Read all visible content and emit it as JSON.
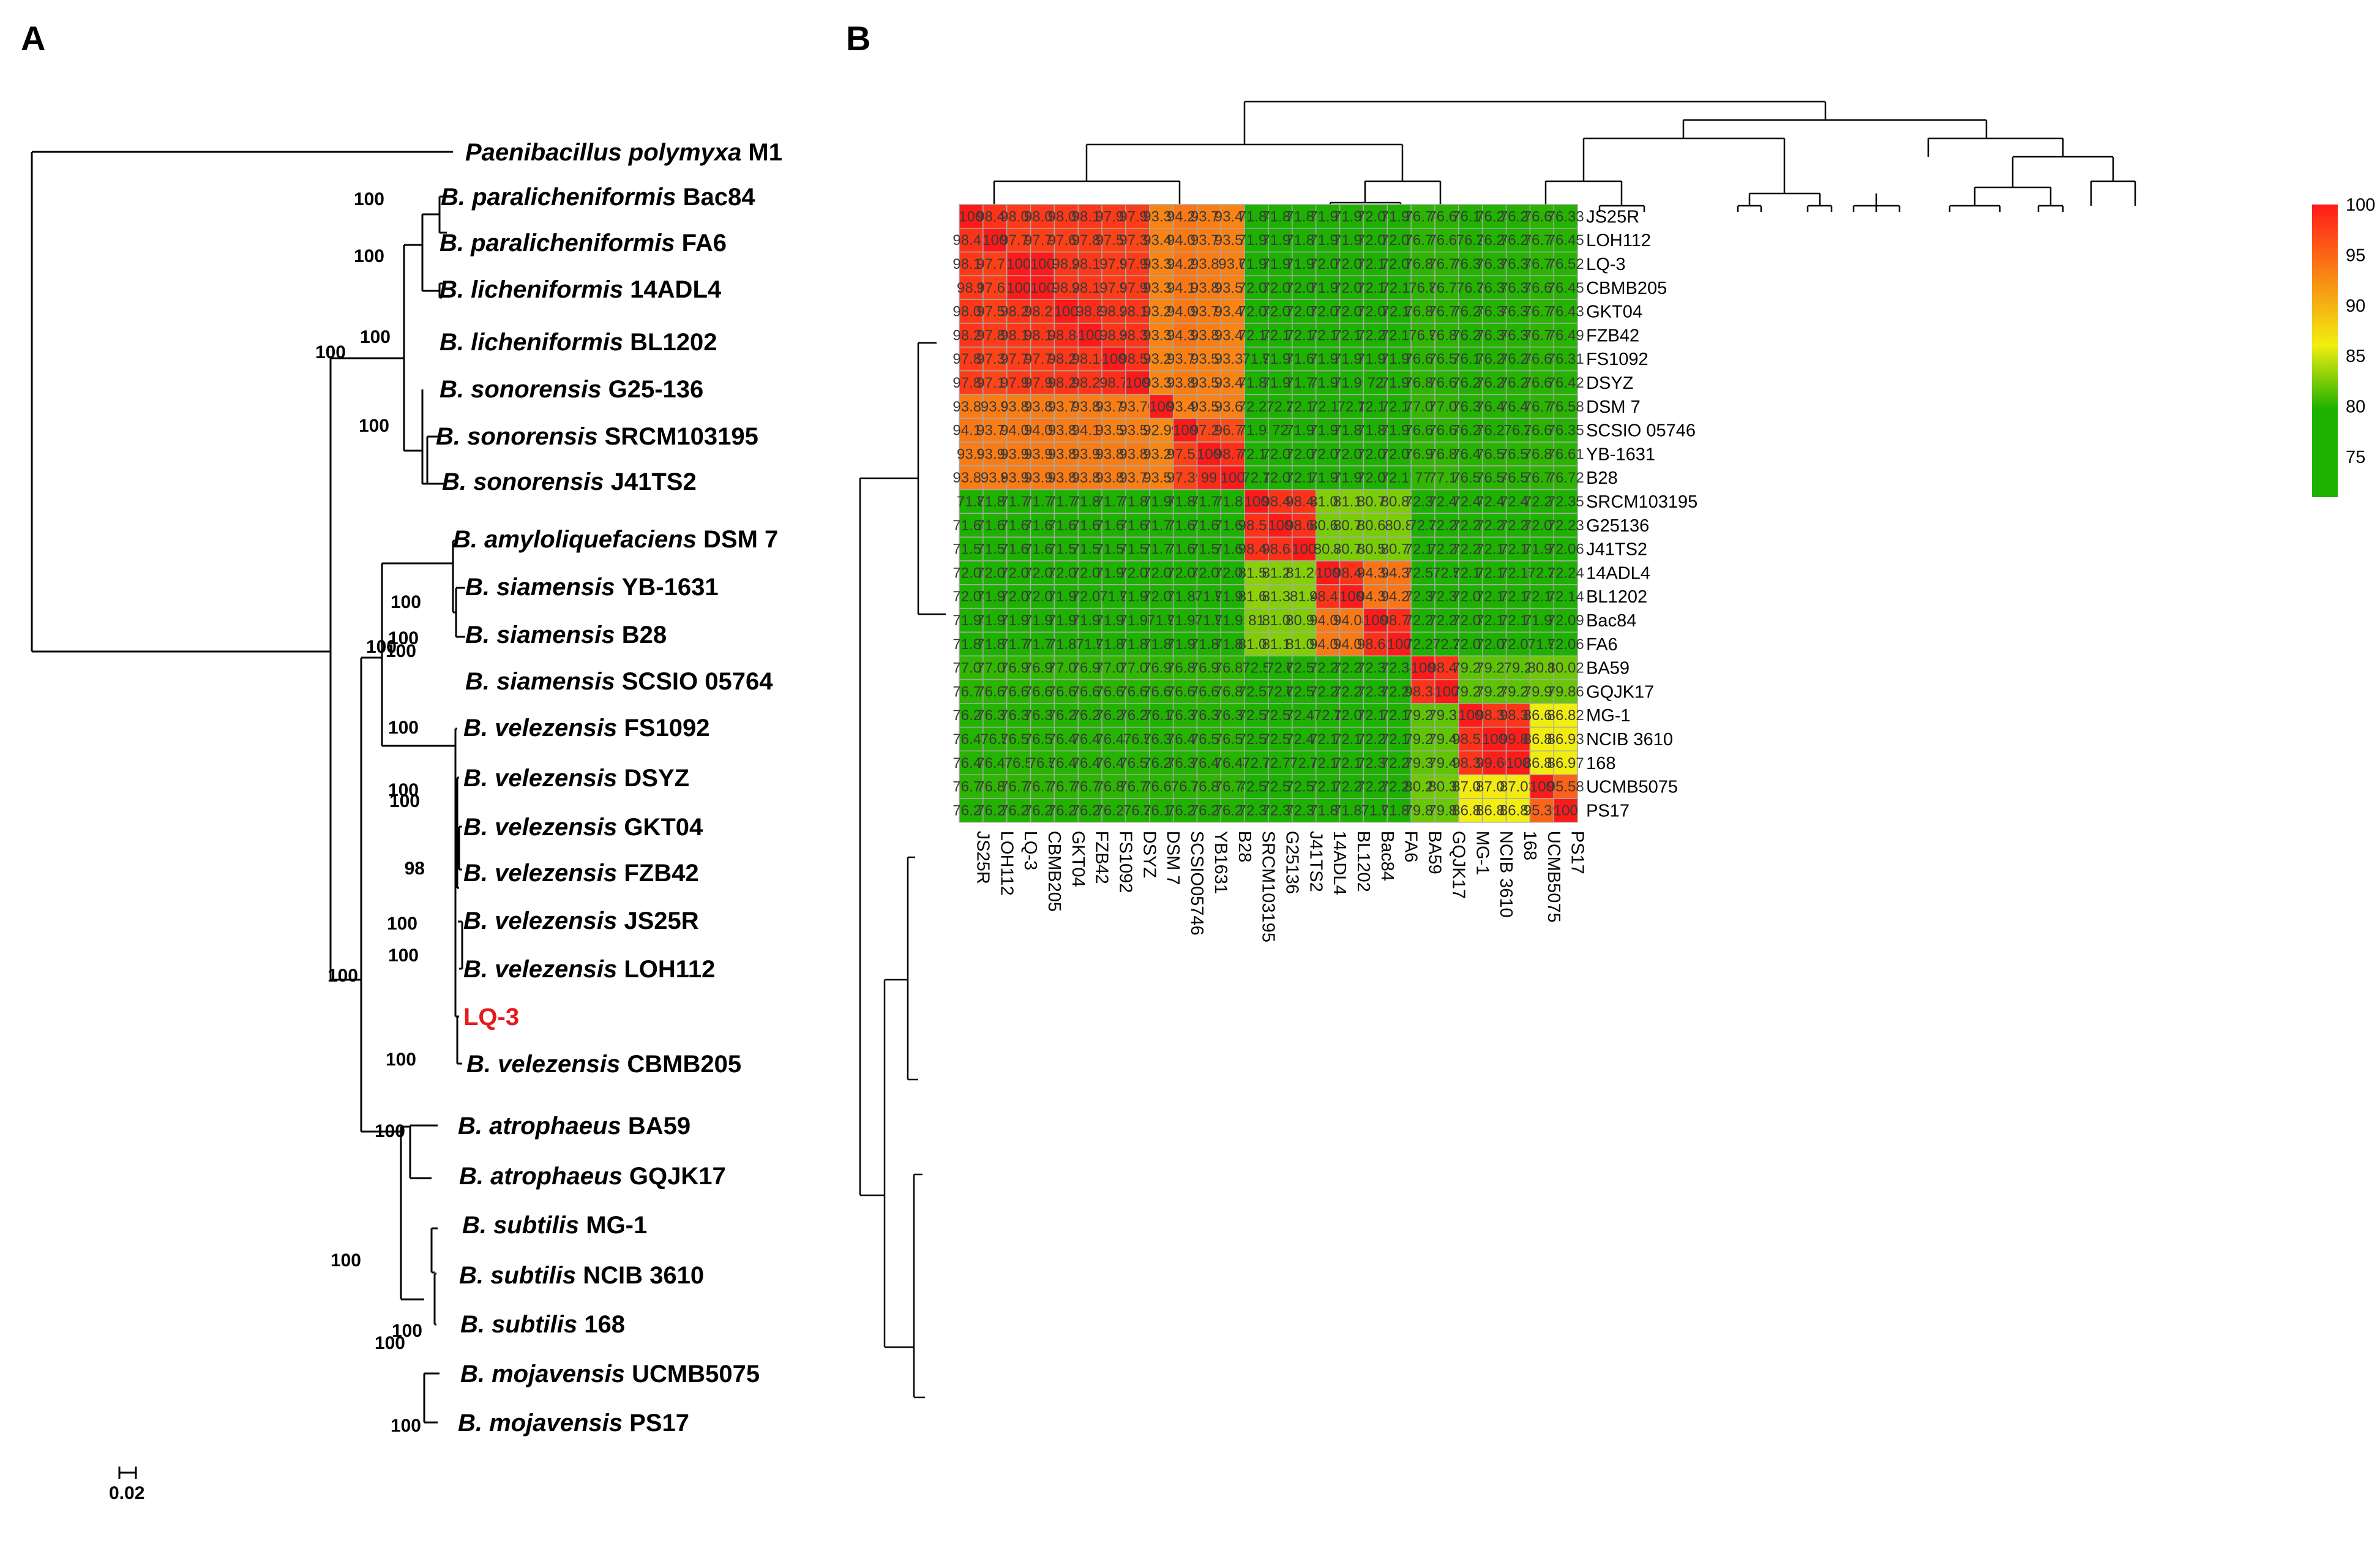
{
  "panels": {
    "a": "A",
    "b": "B"
  },
  "tree": {
    "outgroup": {
      "genus": "Paenibacillus polymyxa",
      "strain": "M1"
    },
    "taxa": [
      {
        "genus": "B. paralicheniformis",
        "strain": "Bac84"
      },
      {
        "genus": "B. paralicheniformis",
        "strain": "FA6"
      },
      {
        "genus": "B. licheniformis",
        "strain": "14ADL4"
      },
      {
        "genus": "B. licheniformis",
        "strain": "BL1202"
      },
      {
        "genus": "B. sonorensis",
        "strain": "G25-136"
      },
      {
        "genus": "B. sonorensis",
        "strain": "SRCM103195"
      },
      {
        "genus": "B. sonorensis",
        "strain": "J41TS2"
      },
      {
        "genus": "B. amyloliquefaciens",
        "strain": "DSM 7"
      },
      {
        "genus": "B. siamensis",
        "strain": "YB-1631"
      },
      {
        "genus": "B. siamensis",
        "strain": "B28"
      },
      {
        "genus": "B. siamensis",
        "strain": "SCSIO 05764"
      },
      {
        "genus": "B. velezensis",
        "strain": "FS1092"
      },
      {
        "genus": "B. velezensis",
        "strain": "DSYZ"
      },
      {
        "genus": "B. velezensis",
        "strain": "GKT04"
      },
      {
        "genus": "B. velezensis",
        "strain": "FZB42"
      },
      {
        "genus": "B. velezensis",
        "strain": "JS25R"
      },
      {
        "genus": "B. velezensis",
        "strain": "LOH112"
      },
      {
        "genus": "",
        "strain": "LQ-3",
        "highlight": "#e8191c"
      },
      {
        "genus": "B. velezensis",
        "strain": "CBMB205"
      },
      {
        "genus": "B. atrophaeus",
        "strain": "BA59"
      },
      {
        "genus": "B. atrophaeus",
        "strain": "GQJK17"
      },
      {
        "genus": "B. subtilis",
        "strain": "MG-1"
      },
      {
        "genus": "B. subtilis",
        "strain": "NCIB 3610"
      },
      {
        "genus": "B. subtilis",
        "strain": "168"
      },
      {
        "genus": "B. mojavensis",
        "strain": "UCMB5075"
      },
      {
        "genus": "B. mojavensis",
        "strain": "PS17"
      }
    ],
    "bootstrap": [
      "100",
      "100",
      "100",
      "100",
      "100",
      "100",
      "100",
      "100",
      "100",
      "100",
      "100",
      "100",
      "98",
      "100",
      "100",
      "100",
      "100",
      "100",
      "100",
      "100",
      "100",
      "100"
    ],
    "scale_label": "0.02"
  },
  "heatmap": {
    "row_labels": [
      "JS25R",
      "LOH112",
      "LQ-3",
      "CBMB205",
      "GKT04",
      "FZB42",
      "FS1092",
      "DSYZ",
      "DSM 7",
      "SCSIO 05746",
      "YB-1631",
      "B28",
      "SRCM103195",
      "G25136",
      "J41TS2",
      "14ADL4",
      "BL1202",
      "Bac84",
      "FA6",
      "BA59",
      "GQJK17",
      "MG-1",
      "NCIB 3610",
      "168",
      "UCMB5075",
      "PS17"
    ],
    "col_labels": [
      "JS25R",
      "LOH112",
      "LQ-3",
      "CBMB205",
      "GKT04",
      "FZB42",
      "FS1092",
      "DSYZ",
      "DSM 7",
      "SCSIO05746",
      "YB1631",
      "B28",
      "SRCM103195",
      "G25136",
      "J41TS2",
      "14ADL4",
      "BL1202",
      "Bac84",
      "FA6",
      "BA59",
      "GQJK17",
      "MG-1",
      "NCIB 3610",
      "168",
      "UCMB5075",
      "PS17"
    ],
    "values": [
      [
        "100",
        "98.42",
        "98.04",
        "98.04",
        "98.08",
        "98.18",
        "97.98",
        "97.91",
        "93.39",
        "94.24",
        "93.71",
        "93.46",
        "71.84",
        "71.86",
        "71.83",
        "71.92",
        "71.93",
        "72.04",
        "71.92",
        "76.74",
        "76.65",
        "76.14",
        "76.23",
        "76.23",
        "76.63",
        "76.33"
      ],
      [
        "98.43",
        "100",
        "97.72",
        "97.72",
        "97.62",
        "97.81",
        "97.51",
        "97.34",
        "93.45",
        "94.05",
        "93.77",
        "93.55",
        "71.98",
        "71.99",
        "71.87",
        "71.93",
        "71.94",
        "72.08",
        "72.01",
        "76.76",
        "76.69",
        "76.2",
        "76.26",
        "76.26",
        "76.76",
        "76.45"
      ],
      [
        "98.14",
        "97.71",
        "100",
        "100",
        "98.2",
        "98.15",
        "97.9",
        "97.94",
        "93.32",
        "94.21",
        "93.86",
        "93.6",
        "71.98",
        "71.97",
        "71.93",
        "72.03",
        "72.04",
        "72.13",
        "72.07",
        "76.82",
        "76.79",
        "76.33",
        "76.39",
        "76.38",
        "76.73",
        "76.52"
      ],
      [
        "98.1",
        "97.62",
        "100",
        "100",
        "98.2",
        "98.12",
        "97.9",
        "97.95",
        "93.31",
        "94.16",
        "93.86",
        "93.57",
        "72.08",
        "72.03",
        "72.05",
        "71.99",
        "72.01",
        "72.15",
        "72.11",
        "76.8",
        "76.75",
        "76.3",
        "76.38",
        "76.38",
        "76.69",
        "76.45"
      ],
      [
        "98.08",
        "97.55",
        "98.23",
        "98.22",
        "100",
        "98.8",
        "98.2",
        "98.18",
        "93.29",
        "94.04",
        "93.76",
        "93.49",
        "72.08",
        "72.09",
        "72.08",
        "72.06",
        "72.05",
        "72.08",
        "72.11",
        "76.89",
        "76.71",
        "76.24",
        "76.34",
        "76.33",
        "76.75",
        "76.43"
      ],
      [
        "98.26",
        "97.82",
        "98.18",
        "98.18",
        "98.84",
        "100",
        "98.3",
        "98.39",
        "93.37",
        "94.34",
        "93.82",
        "93.46",
        "72.18",
        "72.19",
        "72.18",
        "72.12",
        "72.13",
        "72.23",
        "72.19",
        "76.9",
        "76.81",
        "76.26",
        "76.36",
        "76.36",
        "76.76",
        "76.49"
      ],
      [
        "97.83",
        "97.35",
        "97.76",
        "97.76",
        "98.21",
        "98.14",
        "100",
        "98.58",
        "93.23",
        "93.73",
        "93.55",
        "93.33",
        "71.9",
        "71.94",
        "71.69",
        "71.95",
        "71.96",
        "71.97",
        "71.95",
        "76.67",
        "76.58",
        "76.14",
        "76.26",
        "76.26",
        "76.68",
        "76.31"
      ],
      [
        "97.88",
        "97.15",
        "97.93",
        "97.93",
        "98.24",
        "98.29",
        "98.7",
        "100",
        "93.33",
        "93.88",
        "93.58",
        "93.44",
        "71.88",
        "71.91",
        "71.78",
        "71.96",
        "71.99",
        "72",
        "71.95",
        "76.81",
        "76.61",
        "76.21",
        "76.29",
        "76.29",
        "76.61",
        "76.42"
      ],
      [
        "93.89",
        "93.9",
        "93.83",
        "93.83",
        "93.79",
        "93.84",
        "93.78",
        "93.76",
        "100",
        "93.49",
        "93.56",
        "93.68",
        "72.22",
        "72.2",
        "72.15",
        "72.11",
        "72.1",
        "72.15",
        "72.14",
        "77.05",
        "77.03",
        "76.39",
        "76.43",
        "76.43",
        "76.71",
        "76.58"
      ],
      [
        "94.15",
        "93.78",
        "94.06",
        "94.06",
        "93.87",
        "94.15",
        "93.55",
        "93.56",
        "92.99",
        "100",
        "97.21",
        "96.75",
        "71.93",
        "72",
        "71.92",
        "71.96",
        "71.88",
        "71.84",
        "71.91",
        "76.61",
        "76.64",
        "76.23",
        "76.21",
        "76.2",
        "76.66",
        "76.35"
      ],
      [
        "93.9",
        "93.94",
        "93.96",
        "93.96",
        "93.88",
        "93.91",
        "93.88",
        "93.89",
        "93.29",
        "97.52",
        "100",
        "98.76",
        "72.13",
        "72.05",
        "72.09",
        "72.06",
        "72.03",
        "72.07",
        "72.02",
        "76.97",
        "76.85",
        "76.47",
        "76.55",
        "76.55",
        "76.88",
        "76.61"
      ],
      [
        "93.89",
        "93.8",
        "93.94",
        "93.94",
        "93.88",
        "93.83",
        "93.82",
        "93.77",
        "93.55",
        "97.39",
        "99",
        "100",
        "72.1",
        "72.08",
        "72.15",
        "71.99",
        "71.99",
        "72.08",
        "72.15",
        "77",
        "77.16",
        "76.51",
        "76.54",
        "76.52",
        "76.73",
        "76.72"
      ],
      [
        "71.8",
        "71.83",
        "71.79",
        "71.78",
        "71.78",
        "71.85",
        "71.75",
        "71.81",
        "71.96",
        "71.84",
        "71.75",
        "71.81",
        "100",
        "98.46",
        "98.44",
        "81.07",
        "81.17",
        "80.72",
        "80.84",
        "72.37",
        "72.47",
        "72.44",
        "72.41",
        "72.42",
        "72.27",
        "72.35"
      ],
      [
        "71.68",
        "71.65",
        "71.64",
        "71.64",
        "71.63",
        "71.67",
        "71.64",
        "71.63",
        "71.72",
        "71.65",
        "71.63",
        "71.68",
        "98.55",
        "100",
        "98.64",
        "80.67",
        "80.75",
        "80.65",
        "80.8",
        "72.3",
        "72.27",
        "72.27",
        "72.27",
        "72.28",
        "72.09",
        "72.23"
      ],
      [
        "71.55",
        "71.52",
        "71.62",
        "71.61",
        "71.59",
        "71.59",
        "71.54",
        "71.51",
        "71.73",
        "71.65",
        "71.56",
        "71.65",
        "98.47",
        "98.63",
        "100",
        "80.7",
        "80.74",
        "80.59",
        "80.71",
        "72.16",
        "72.23",
        "72.21",
        "72.13",
        "72.13",
        "71.95",
        "72.06"
      ],
      [
        "72.08",
        "72.01",
        "72.04",
        "72.04",
        "72.01",
        "72.08",
        "71.99",
        "72.03",
        "72.07",
        "72.04",
        "72.03",
        "72.06",
        "81.53",
        "81.21",
        "81.26",
        "100",
        "98.43",
        "94.34",
        "94.35",
        "72.51",
        "72.5",
        "72.16",
        "72.15",
        "72.15",
        "72.2",
        "72.24"
      ],
      [
        "72.04",
        "71.95",
        "72.04",
        "72.04",
        "71.91",
        "72.03",
        "71.9",
        "71.91",
        "72.02",
        "71.88",
        "71.9",
        "71.95",
        "81.66",
        "81.31",
        "81.4",
        "98.43",
        "100",
        "94.32",
        "94.25",
        "72.36",
        "72.39",
        "72.07",
        "72.15",
        "72.14",
        "72.14",
        "72.14"
      ],
      [
        "71.98",
        "71.95",
        "71.97",
        "71.97",
        "71.93",
        "71.98",
        "71.96",
        "71.96",
        "71.9",
        "71.98",
        "71.9",
        "71.95",
        "81",
        "81.02",
        "80.91",
        "94.08",
        "94.04",
        "100",
        "98.75",
        "72.21",
        "72.25",
        "72.04",
        "72.12",
        "72.13",
        "71.96",
        "72.09"
      ],
      [
        "71.83",
        "71.82",
        "71.79",
        "71.79",
        "71.82",
        "71.9",
        "71.81",
        "71.81",
        "71.85",
        "71.92",
        "71.84",
        "71.83",
        "81.07",
        "81.12",
        "81.06",
        "94.04",
        "94.01",
        "98.68",
        "100",
        "72.25",
        "72.2",
        "72.02",
        "72.03",
        "72.03",
        "71.9",
        "72.06"
      ],
      [
        "77.01",
        "77.01",
        "76.99",
        "76.99",
        "77.02",
        "76.98",
        "77.02",
        "77.09",
        "76.91",
        "76.87",
        "76.98",
        "76.89",
        "72.5",
        "72.6",
        "72.55",
        "72.23",
        "72.22",
        "72.32",
        "72.34",
        "100",
        "98.43",
        "79.25",
        "79.21",
        "79.2",
        "80.1",
        "80.02"
      ],
      [
        "76.73",
        "76.67",
        "76.68",
        "76.68",
        "76.66",
        "76.67",
        "76.67",
        "76.65",
        "76.63",
        "76.66",
        "76.67",
        "76.89",
        "72.57",
        "72.6",
        "72.56",
        "72.24",
        "72.24",
        "72.32",
        "72.28",
        "98.38",
        "100",
        "79.28",
        "79.24",
        "79.24",
        "79.96",
        "79.86"
      ],
      [
        "76.27",
        "76.37",
        "76.31",
        "76.31",
        "76.25",
        "76.28",
        "76.26",
        "76.29",
        "76.11",
        "76.31",
        "76.32",
        "76.38",
        "72.53",
        "72.58",
        "72.47",
        "72.1",
        "72.06",
        "72.19",
        "72.17",
        "79.26",
        "79.32",
        "100",
        "98.33",
        "98.38",
        "86.66",
        "86.82"
      ],
      [
        "76.42",
        "76.5",
        "76.51",
        "76.51",
        "76.46",
        "76.44",
        "76.48",
        "76.5",
        "76.33",
        "76.49",
        "76.54",
        "76.59",
        "72.55",
        "72.51",
        "72.48",
        "72.13",
        "72.14",
        "72.25",
        "72.16",
        "79.29",
        "79.42",
        "98.52",
        "100",
        "99.81",
        "86.84",
        "86.93"
      ],
      [
        "76.44",
        "76.43",
        "76.5",
        "76.5",
        "76.46",
        "76.49",
        "76.49",
        "76.52",
        "76.28",
        "76.39",
        "76.43",
        "76.44",
        "72.7",
        "72.73",
        "72.7",
        "72.16",
        "72.15",
        "72.33",
        "72.25",
        "79.35",
        "79.41",
        "98.34",
        "99.66",
        "100",
        "86.84",
        "86.97"
      ],
      [
        "76.76",
        "76.88",
        "76.79",
        "76.79",
        "76.76",
        "76.78",
        "76.81",
        "76.77",
        "76.67",
        "76.7",
        "76.83",
        "76.74",
        "72.59",
        "72.57",
        "72.55",
        "72.17",
        "72.24",
        "72.21",
        "72.23",
        "80.27",
        "80.37",
        "87.01",
        "87.03",
        "87.03",
        "100",
        "95.58"
      ],
      [
        "76.27",
        "76.25",
        "76.29",
        "76.29",
        "76.22",
        "76.23",
        "76.26",
        "76.3",
        "76.12",
        "76.21",
        "76.21",
        "76.23",
        "72.32",
        "72.34",
        "72.32",
        "71.84",
        "71.84",
        "71.9",
        "71.87",
        "79.81",
        "79.81",
        "86.81",
        "86.83",
        "86.83",
        "95.39",
        "100"
      ]
    ]
  },
  "legend": {
    "ticks": [
      "100",
      "95",
      "90",
      "85",
      "80",
      "75"
    ],
    "range": [
      71,
      100
    ],
    "colors": [
      "#1db100",
      "#f2ee10",
      "#ff1a1a"
    ]
  }
}
